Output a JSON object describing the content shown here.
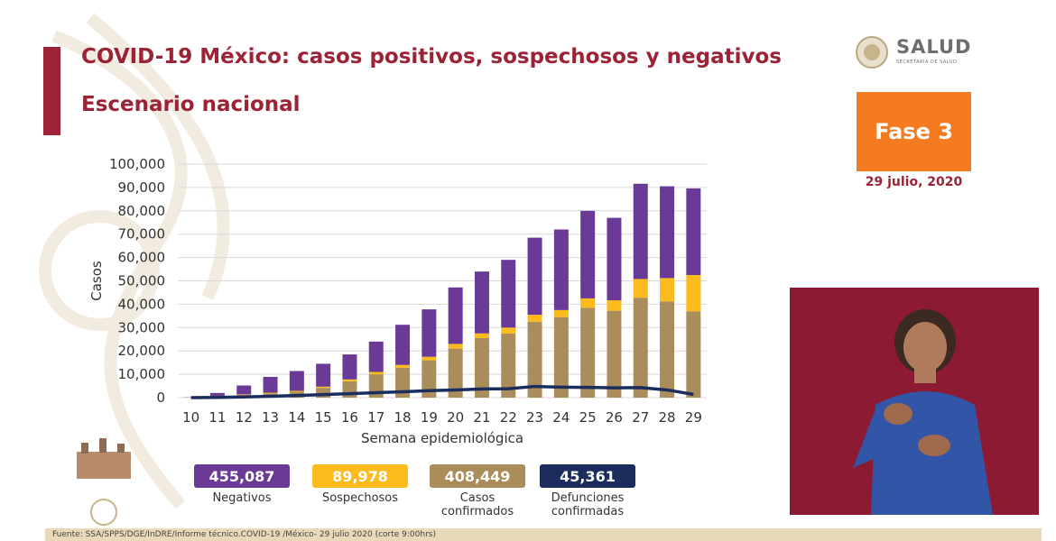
{
  "header": {
    "title": "COVID-19 México: casos positivos, sospechosos y negativos",
    "subtitle": "Escenario nacional"
  },
  "logo": {
    "name": "SALUD",
    "sub": "SECRETARÍA DE SALUD"
  },
  "phase": {
    "label": "Fase 3",
    "date": "29 julio, 2020"
  },
  "colors": {
    "negativos": "#6b3a97",
    "sospechosos": "#fbbb1c",
    "confirmados": "#ab8d5b",
    "defunciones": "#1a2d5c",
    "accent": "#9b2335",
    "phase": "#f47b20"
  },
  "legend": [
    {
      "value": "455,087",
      "label": "Negativos",
      "color": "#6b3a97"
    },
    {
      "value": "89,978",
      "label": "Sospechosos",
      "color": "#fbbb1c"
    },
    {
      "value": "408,449",
      "label": "Casos confirmados",
      "color": "#ab8d5b"
    },
    {
      "value": "45,361",
      "label": "Defunciones confirmadas",
      "color": "#1a2d5c"
    }
  ],
  "chart_data": {
    "type": "bar",
    "stacked": true,
    "xlabel": "Semana epidemiológica",
    "ylabel": "Casos",
    "ylim": [
      0,
      100000
    ],
    "yticks": [
      0,
      10000,
      20000,
      30000,
      40000,
      50000,
      60000,
      70000,
      80000,
      90000,
      100000
    ],
    "ytick_labels": [
      "0",
      "10,000",
      "20,000",
      "30,000",
      "40,000",
      "50,000",
      "60,000",
      "70,000",
      "80,000",
      "90,000",
      "100,000"
    ],
    "grid": true,
    "categories": [
      "10",
      "11",
      "12",
      "13",
      "14",
      "15",
      "16",
      "17",
      "18",
      "19",
      "20",
      "21",
      "22",
      "23",
      "24",
      "25",
      "26",
      "27",
      "28",
      "29"
    ],
    "series": [
      {
        "name": "Casos confirmados",
        "values": [
          100,
          700,
          1200,
          1800,
          2500,
          4200,
          7000,
          10000,
          12800,
          16000,
          21000,
          25500,
          27500,
          32500,
          34500,
          38500,
          37200,
          42800,
          41200,
          37000
        ]
      },
      {
        "name": "Sospechosos",
        "values": [
          30,
          100,
          200,
          300,
          400,
          500,
          800,
          1000,
          1200,
          1500,
          2000,
          2000,
          2500,
          3000,
          3000,
          4000,
          4500,
          8000,
          10000,
          15500
        ]
      },
      {
        "name": "Negativos",
        "values": [
          70,
          1200,
          3800,
          6800,
          8500,
          9800,
          10700,
          13000,
          17200,
          20300,
          24200,
          26500,
          29000,
          33000,
          34500,
          37500,
          35300,
          40800,
          39300,
          37100
        ]
      },
      {
        "name": "Defunciones confirmadas",
        "type": "line",
        "values": [
          10,
          100,
          300,
          600,
          900,
          1300,
          1700,
          2100,
          2500,
          3000,
          3300,
          3700,
          3800,
          4800,
          4500,
          4400,
          4200,
          4300,
          3300,
          1400
        ]
      }
    ]
  },
  "footer": {
    "source": "Fuente: SSA/SPPS/DGE/InDRE/Informe técnico.COVID-19 /México- 29 julio 2020 (corte 9:00hrs)"
  }
}
